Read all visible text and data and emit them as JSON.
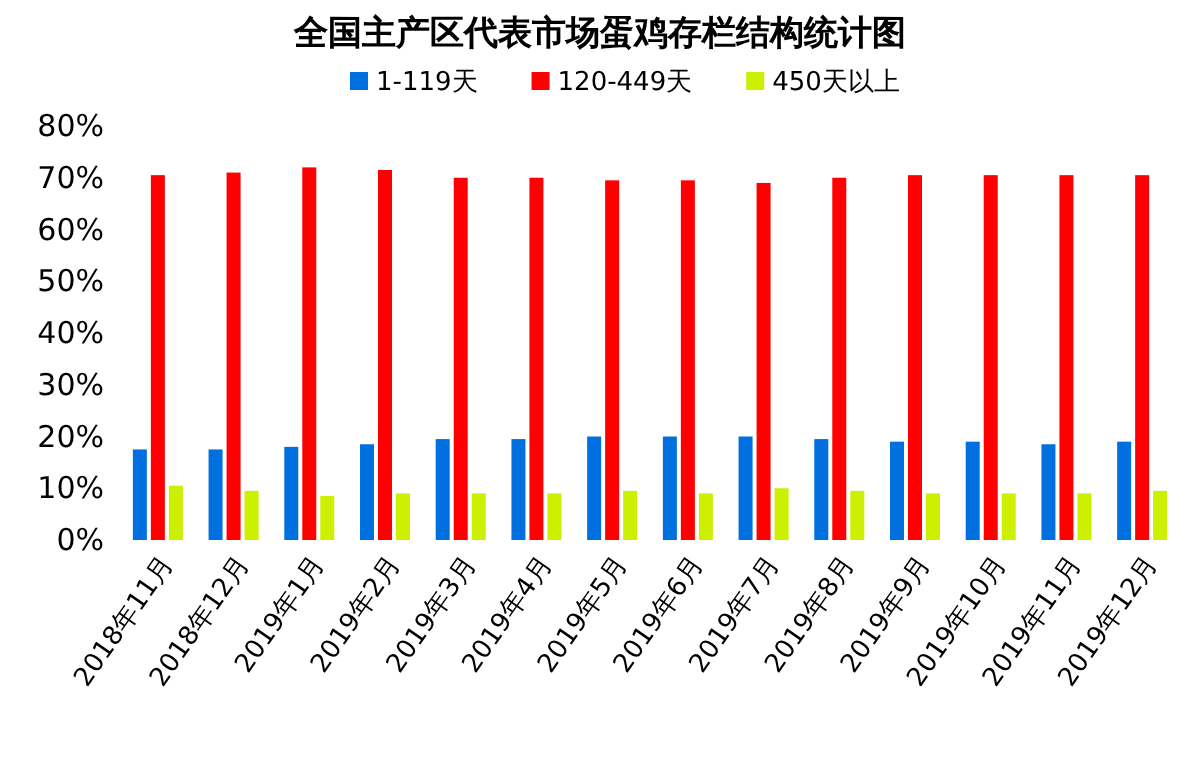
{
  "chart_data": {
    "type": "bar",
    "title": "全国主产区代表市场蛋鸡存栏结构统计图",
    "categories": [
      "2018年11月",
      "2018年12月",
      "2019年1月",
      "2019年2月",
      "2019年3月",
      "2019年4月",
      "2019年5月",
      "2019年6月",
      "2019年7月",
      "2019年8月",
      "2019年9月",
      "2019年10月",
      "2019年11月",
      "2019年12月"
    ],
    "series": [
      {
        "name": "1-119天",
        "color": "#0070e0",
        "values": [
          17.5,
          17.5,
          18,
          18.5,
          19.5,
          19.5,
          20,
          20,
          20,
          19.5,
          19,
          19,
          18.5,
          19
        ]
      },
      {
        "name": "120-449天",
        "color": "#ff0000",
        "values": [
          70.5,
          71,
          72,
          71.5,
          70,
          70,
          69.5,
          69.5,
          69,
          70,
          70.5,
          70.5,
          70.5,
          70.5
        ]
      },
      {
        "name": "450天以上",
        "color": "#ccf000",
        "values": [
          10.5,
          9.5,
          8.5,
          9,
          9,
          9,
          9.5,
          9,
          10,
          9.5,
          9,
          9,
          9,
          9.5
        ]
      }
    ],
    "ylim": [
      0,
      80
    ],
    "yticks": [
      {
        "value": 0,
        "label": "0%"
      },
      {
        "value": 10,
        "label": "10%"
      },
      {
        "value": 20,
        "label": "20%"
      },
      {
        "value": 30,
        "label": "30%"
      },
      {
        "value": 40,
        "label": "40%"
      },
      {
        "value": 50,
        "label": "50%"
      },
      {
        "value": 60,
        "label": "60%"
      },
      {
        "value": 70,
        "label": "70%"
      },
      {
        "value": 80,
        "label": "80%"
      }
    ],
    "legend": "top",
    "grid": false
  }
}
